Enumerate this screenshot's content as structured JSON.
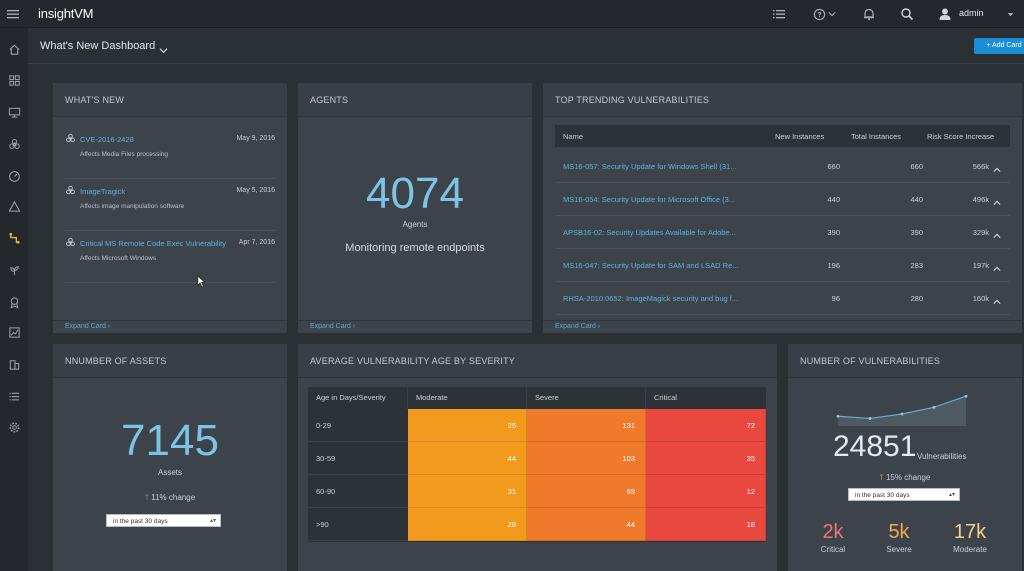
{
  "app": {
    "name": "insightVM",
    "user": "admin"
  },
  "colors": {
    "accent": "#5fb3e0",
    "button": "#1a8fd6",
    "moderate": "#f29a1e",
    "severe": "#ef7a2c",
    "critical": "#e8483e",
    "sev_critical_text": "#f07575",
    "sev_severe_text": "#f0a84a",
    "sev_moderate_text": "#f2d38a"
  },
  "dashboard": {
    "title": "What's New Dashboard",
    "add_card": "+ Add Card"
  },
  "whats_new": {
    "header": "WHAT'S NEW",
    "items": [
      {
        "title": "CVE-2016-2428",
        "date": "May 9, 2016",
        "desc": "Affects Media Files processing"
      },
      {
        "title": "ImageTragick",
        "date": "May 5, 2016",
        "desc": "Affects image manipulation software"
      },
      {
        "title": "Critical MS Remote Code Exec Vulnerability",
        "date": "Apr 7, 2016",
        "desc": "Affects Microsoft Windows"
      }
    ],
    "expand": "Expand Card ›"
  },
  "agents": {
    "header": "AGENTS",
    "count": "4074",
    "label": "Agents",
    "subtitle": "Monitoring remote endpoints",
    "expand": "Expand Card ›"
  },
  "trending": {
    "header": "TOP TRENDING VULNERABILITIES",
    "columns": [
      "Name",
      "New Instances",
      "Total Instances",
      "Risk Score Increase"
    ],
    "rows": [
      {
        "name": "MS16-057: Security Update for Windows Shell (31...",
        "new": "660",
        "total": "660",
        "risk": "566k"
      },
      {
        "name": "MS16-054: Security Update for Microsoft Office (3...",
        "new": "440",
        "total": "440",
        "risk": "496k"
      },
      {
        "name": "APSB16-02: Security Updates Available for Adobe...",
        "new": "390",
        "total": "390",
        "risk": "329k"
      },
      {
        "name": "MS16-047: Security Update for SAM and LSAD Re...",
        "new": "196",
        "total": "283",
        "risk": "197k"
      },
      {
        "name": "RHSA-2010:0652: ImageMagick security and bug f...",
        "new": "96",
        "total": "280",
        "risk": "160k"
      }
    ],
    "expand": "Expand Card ›"
  },
  "assets": {
    "header": "NNUMBER OF ASSETS",
    "count": "7145",
    "label": "Assets",
    "change": "11% change",
    "period": "in the past 30 days"
  },
  "age": {
    "header": "AVERAGE VULNERABILITY AGE BY SEVERITY",
    "corner": "Age in Days/Severity",
    "severities": [
      "Moderate",
      "Severe",
      "Critical"
    ],
    "rows": [
      {
        "label": "0-29",
        "values": [
          "25",
          "131",
          "72"
        ]
      },
      {
        "label": "30-59",
        "values": [
          "44",
          "103",
          "35"
        ]
      },
      {
        "label": "60-90",
        "values": [
          "31",
          "69",
          "12"
        ]
      },
      {
        "label": ">90",
        "values": [
          "28",
          "44",
          "18"
        ]
      }
    ]
  },
  "vulns": {
    "header": "NUMBER OF VULNERABILITIES",
    "count": "24851",
    "label": "Vulnerabilities",
    "change": "15% change",
    "period": "in the past 30 days",
    "trend": [
      42,
      40,
      44,
      50,
      60
    ],
    "breakdown": [
      {
        "value": "2k",
        "label": "Critical"
      },
      {
        "value": "5k",
        "label": "Severe"
      },
      {
        "value": "17k",
        "label": "Moderate"
      }
    ]
  },
  "icons": {
    "top": [
      "menu-icon",
      "list-icon",
      "help-icon",
      "bell-icon",
      "search-icon",
      "user-icon",
      "caret-down-icon"
    ],
    "nav": [
      "home-icon",
      "dashboard-icon",
      "monitor-icon",
      "biohazard-icon",
      "gauge-icon",
      "warning-icon",
      "workflow-icon",
      "plant-icon",
      "badge-icon",
      "chart-icon",
      "building-icon",
      "list-icon",
      "gear-icon"
    ]
  }
}
